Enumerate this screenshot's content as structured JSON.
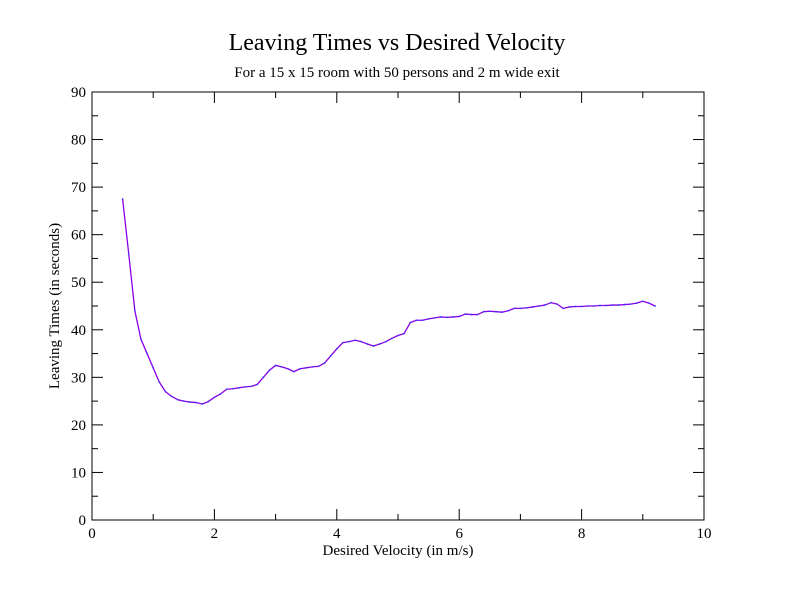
{
  "chart_data": {
    "type": "line",
    "title": "Leaving Times vs Desired Velocity",
    "subtitle": "For a 15 x 15 room with 50 persons and 2 m wide exit",
    "xlabel": "Desired Velocity (in m/s)",
    "ylabel": "Leaving Times (in seconds)",
    "xlim": [
      0,
      10
    ],
    "ylim": [
      0,
      90
    ],
    "x_ticks": [
      0,
      2,
      4,
      6,
      8,
      10
    ],
    "y_ticks": [
      0,
      10,
      20,
      30,
      40,
      50,
      60,
      70,
      80,
      90
    ],
    "grid": false,
    "legend": "none",
    "series": [
      {
        "color": "#8a00e6",
        "x": [
          0.5,
          0.6,
          0.7,
          0.8,
          0.9,
          1.0,
          1.1,
          1.2,
          1.3,
          1.4,
          1.5,
          1.6,
          1.7,
          1.8,
          1.9,
          2.0,
          2.1,
          2.2,
          2.3,
          2.4,
          2.5,
          2.6,
          2.7,
          2.8,
          2.9,
          3.0,
          3.1,
          3.2,
          3.3,
          3.4,
          3.5,
          3.6,
          3.7,
          3.8,
          3.9,
          4.0,
          4.1,
          4.2,
          4.3,
          4.4,
          4.5,
          4.6,
          4.7,
          4.8,
          4.9,
          5.0,
          5.1,
          5.2,
          5.3,
          5.4,
          5.5,
          5.6,
          5.7,
          5.8,
          5.9,
          6.0,
          6.1,
          6.2,
          6.3,
          6.4,
          6.5,
          6.6,
          6.7,
          6.8,
          6.9,
          7.0,
          7.1,
          7.2,
          7.3,
          7.4,
          7.5,
          7.6,
          7.7,
          7.8,
          7.9,
          8.0,
          8.1,
          8.2,
          8.3,
          8.4,
          8.5,
          8.6,
          8.7,
          8.8,
          8.9,
          9.0,
          9.1,
          9.2
        ],
        "y": [
          67.5,
          56.0,
          44.0,
          38.0,
          35.0,
          32.0,
          29.0,
          27.0,
          26.0,
          25.3,
          25.0,
          24.8,
          24.7,
          24.4,
          24.9,
          25.8,
          26.5,
          27.5,
          27.6,
          27.8,
          28.0,
          28.1,
          28.5,
          30.0,
          31.5,
          32.5,
          32.2,
          31.8,
          31.2,
          31.8,
          32.0,
          32.2,
          32.3,
          33.0,
          34.5,
          36.0,
          37.3,
          37.5,
          37.8,
          37.5,
          37.0,
          36.6,
          37.0,
          37.5,
          38.2,
          38.8,
          39.2,
          41.5,
          42.0,
          42.0,
          42.3,
          42.5,
          42.7,
          42.6,
          42.7,
          42.8,
          43.3,
          43.2,
          43.2,
          43.8,
          43.9,
          43.8,
          43.7,
          44.0,
          44.5,
          44.5,
          44.6,
          44.8,
          45.0,
          45.2,
          45.7,
          45.4,
          44.5,
          44.8,
          44.9,
          44.9,
          45.0,
          45.0,
          45.1,
          45.1,
          45.2,
          45.2,
          45.3,
          45.4,
          45.6,
          46.0,
          45.6,
          45.0
        ]
      }
    ]
  }
}
